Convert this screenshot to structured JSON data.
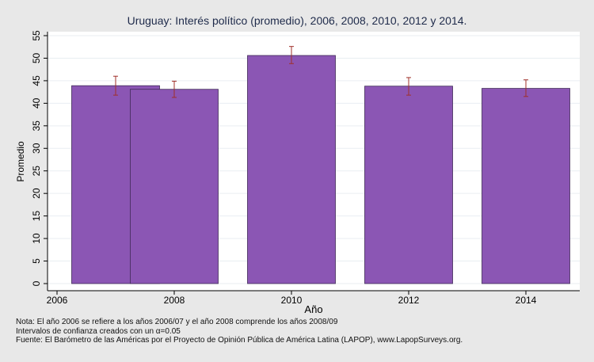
{
  "chart_data": {
    "type": "bar",
    "title": "Uruguay: Interés político (promedio), 2006, 2008, 2010, 2012 y 2014.",
    "xlabel": "Año",
    "ylabel": "Promedio",
    "xlim": [
      2006,
      2015
    ],
    "ylim": [
      0,
      55
    ],
    "x_ticks": [
      2006,
      2008,
      2010,
      2012,
      2014
    ],
    "y_ticks": [
      0,
      5,
      10,
      15,
      20,
      25,
      30,
      35,
      40,
      45,
      50,
      55
    ],
    "grid": true,
    "bar_color": "#8b56b4",
    "error_bar_color": "#a0302a",
    "bars": [
      {
        "x_start": 2006.25,
        "x_end": 2007.75,
        "value": 43.9,
        "ci_low": 41.8,
        "ci_high": 46.0
      },
      {
        "x_start": 2007.25,
        "x_end": 2008.75,
        "value": 43.1,
        "ci_low": 41.3,
        "ci_high": 44.9
      },
      {
        "x_start": 2009.25,
        "x_end": 2010.75,
        "value": 50.6,
        "ci_low": 48.8,
        "ci_high": 52.6
      },
      {
        "x_start": 2011.25,
        "x_end": 2012.75,
        "value": 43.8,
        "ci_low": 41.8,
        "ci_high": 45.7
      },
      {
        "x_start": 2013.25,
        "x_end": 2014.75,
        "value": 43.3,
        "ci_low": 41.5,
        "ci_high": 45.2
      }
    ]
  },
  "notes": {
    "line1": "Nota: El año 2006 se refiere a los años 2006/07 y el año 2008 comprende los años 2008/09",
    "line2": "Intervalos de confianza creados con un α=0.05",
    "line3": "Fuente: El Barómetro de las Américas por el Proyecto de Opinión Pública de América Latina (LAPOP), www.LapopSurveys.org."
  }
}
